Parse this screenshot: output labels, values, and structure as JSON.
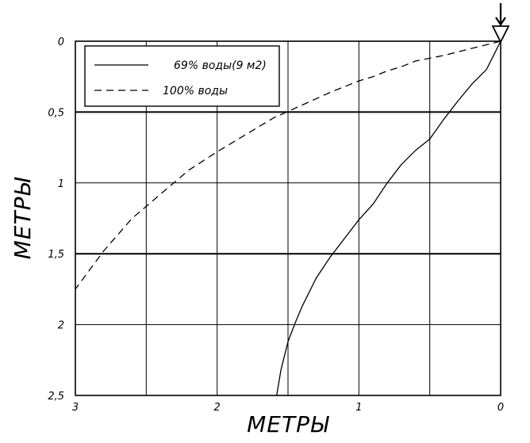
{
  "chart_data": {
    "type": "line",
    "xlabel": "МЕТРЫ",
    "ylabel": "МЕТРЫ",
    "xlim": [
      3,
      0
    ],
    "ylim": [
      0,
      2.5
    ],
    "x_reversed": true,
    "y_inverted": true,
    "grid": true,
    "x_ticks": [
      3,
      2.5,
      2,
      1.5,
      1,
      0.5,
      0
    ],
    "x_tick_labels": [
      "3",
      "2",
      "1",
      "0"
    ],
    "x_tick_label_values": [
      3,
      2,
      1,
      0
    ],
    "y_ticks": [
      0,
      0.5,
      1,
      1.5,
      2,
      2.5
    ],
    "y_tick_labels": [
      "0",
      "0,5",
      "1",
      "1,5",
      "2",
      "2,5"
    ],
    "legend_position": "top-left",
    "series": [
      {
        "name": "69% воды(9 м2)",
        "style": "solid",
        "x": [
          0,
          0.05,
          0.1,
          0.2,
          0.3,
          0.4,
          0.5,
          0.6,
          0.7,
          0.8,
          0.9,
          1.0,
          1.1,
          1.2,
          1.3,
          1.4,
          1.45,
          1.5,
          1.55,
          1.58
        ],
        "y": [
          0,
          0.1,
          0.2,
          0.3,
          0.42,
          0.55,
          0.69,
          0.77,
          0.87,
          1.0,
          1.15,
          1.26,
          1.39,
          1.52,
          1.67,
          1.87,
          1.99,
          2.12,
          2.32,
          2.5
        ]
      },
      {
        "name": "100% воды",
        "style": "dashed",
        "x": [
          0,
          0.1,
          0.2,
          0.3,
          0.4,
          0.5,
          0.6,
          0.7,
          0.8,
          0.9,
          1.0,
          1.2,
          1.4,
          1.6,
          1.8,
          2.0,
          2.2,
          2.4,
          2.6,
          2.8,
          3.0
        ],
        "y": [
          0,
          0.025,
          0.05,
          0.075,
          0.1,
          0.12,
          0.14,
          0.18,
          0.21,
          0.25,
          0.28,
          0.36,
          0.45,
          0.54,
          0.66,
          0.78,
          0.91,
          1.08,
          1.25,
          1.48,
          1.75
        ]
      }
    ],
    "surface_marker": "triangle-arrow"
  }
}
